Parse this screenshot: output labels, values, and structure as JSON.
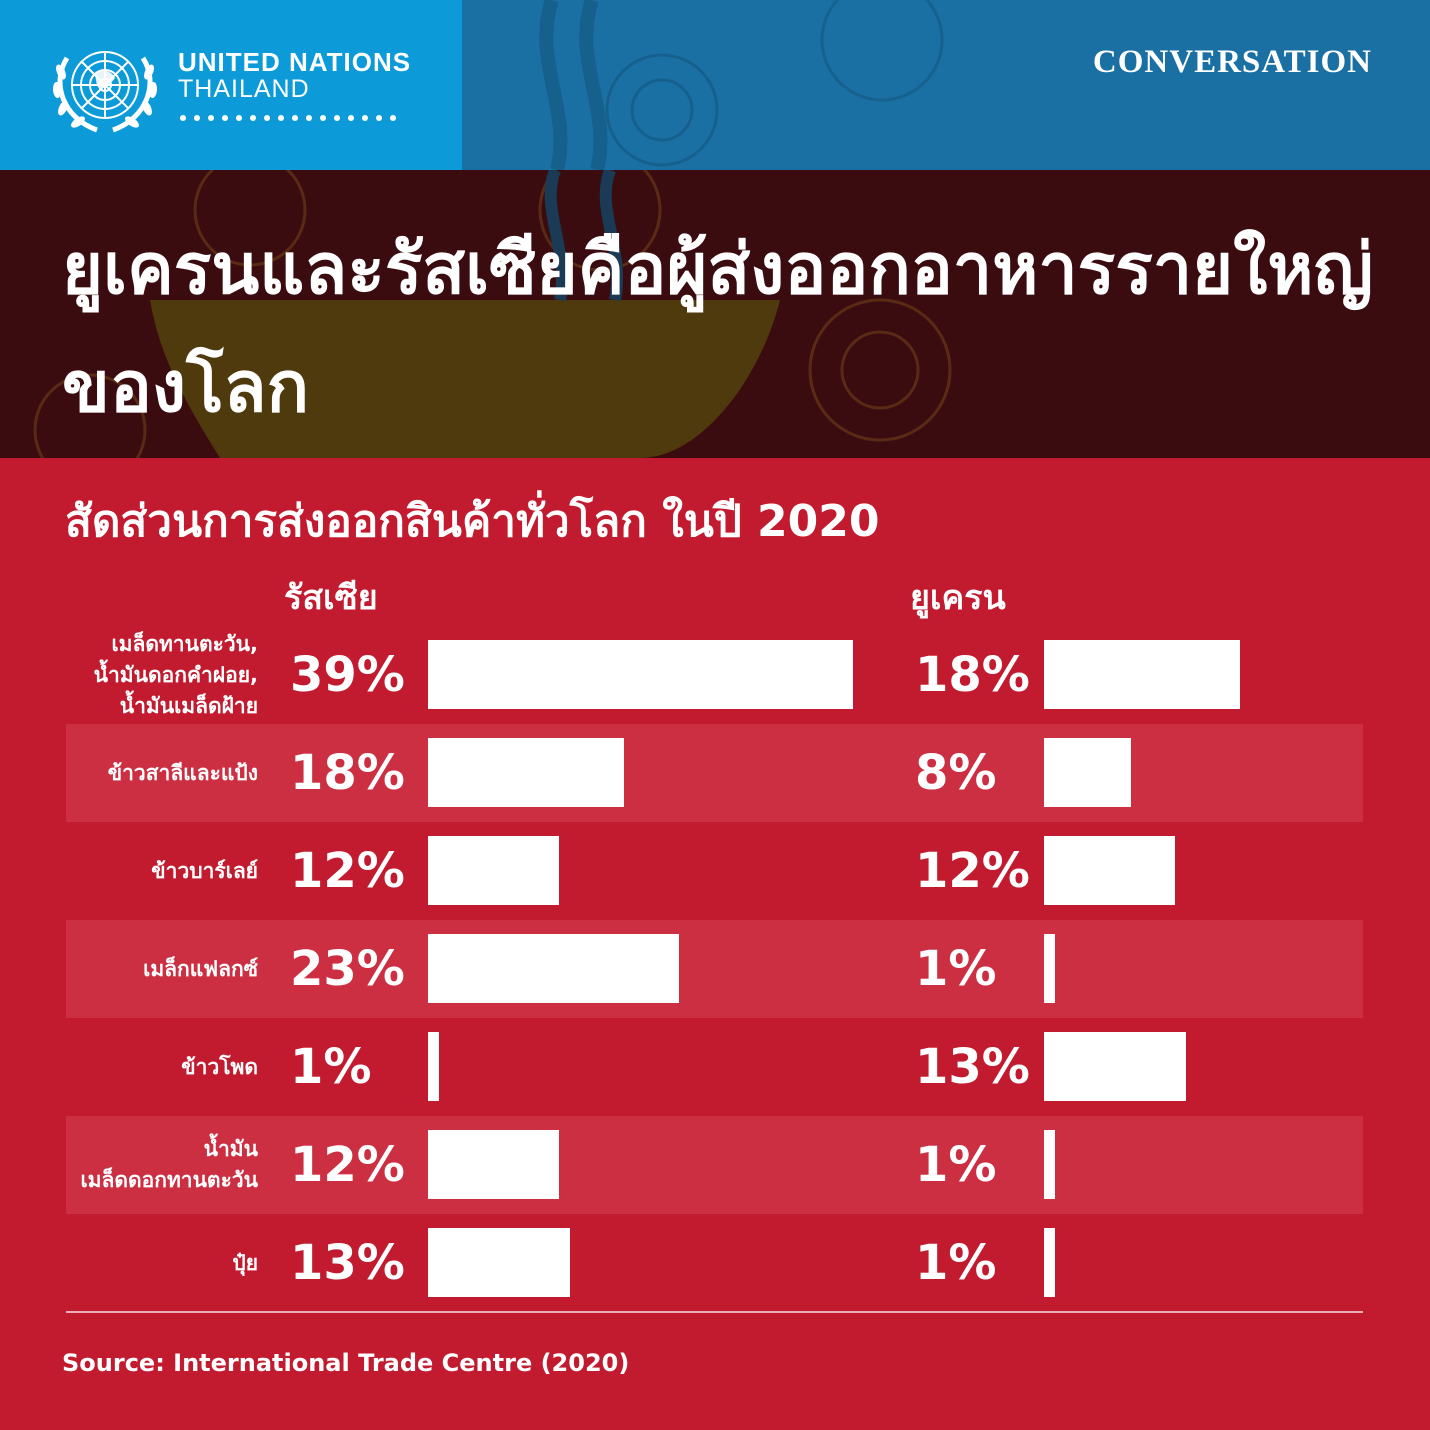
{
  "header": {
    "org_name": "UNITED NATIONS",
    "org_country": "THAILAND",
    "series_label": "CONVERSATION",
    "logo_icon": "un-emblem-icon"
  },
  "title": "ยูเครนและรัสเซียคือผู้ส่งออกอาหารรายใหญ่ของโลก",
  "colors": {
    "header_left": "#0d9ad8",
    "header_right": "#1b70a3",
    "title_band": "#3a0c10",
    "background": "#c21a2e",
    "stripe": "#cd2f42",
    "bar": "#ffffff"
  },
  "chart_data": {
    "type": "bar",
    "title": "สัดส่วนการส่งออกสินค้าทั่วโลก ในปี 2020",
    "categories": [
      "เมล็ดทานตะวัน,\nน้ำมันดอกคำฝอย,\nน้ำมันเมล็ดฝ้าย",
      "ข้าวสาลีและแป้ง",
      "ข้าวบาร์เลย์",
      "เมล็กแฟลกซ์",
      "ข้าวโพด",
      "น้ำมัน\nเมล็ดดอกทานตะวัน",
      "ปุ๋ย"
    ],
    "series": [
      {
        "name": "รัสเซีย",
        "values": [
          39,
          18,
          12,
          23,
          1,
          12,
          13
        ]
      },
      {
        "name": "ยูเครน",
        "values": [
          18,
          8,
          12,
          1,
          13,
          1,
          1
        ]
      }
    ],
    "unit": "%",
    "source": "Source: International Trade Centre (2020)"
  }
}
